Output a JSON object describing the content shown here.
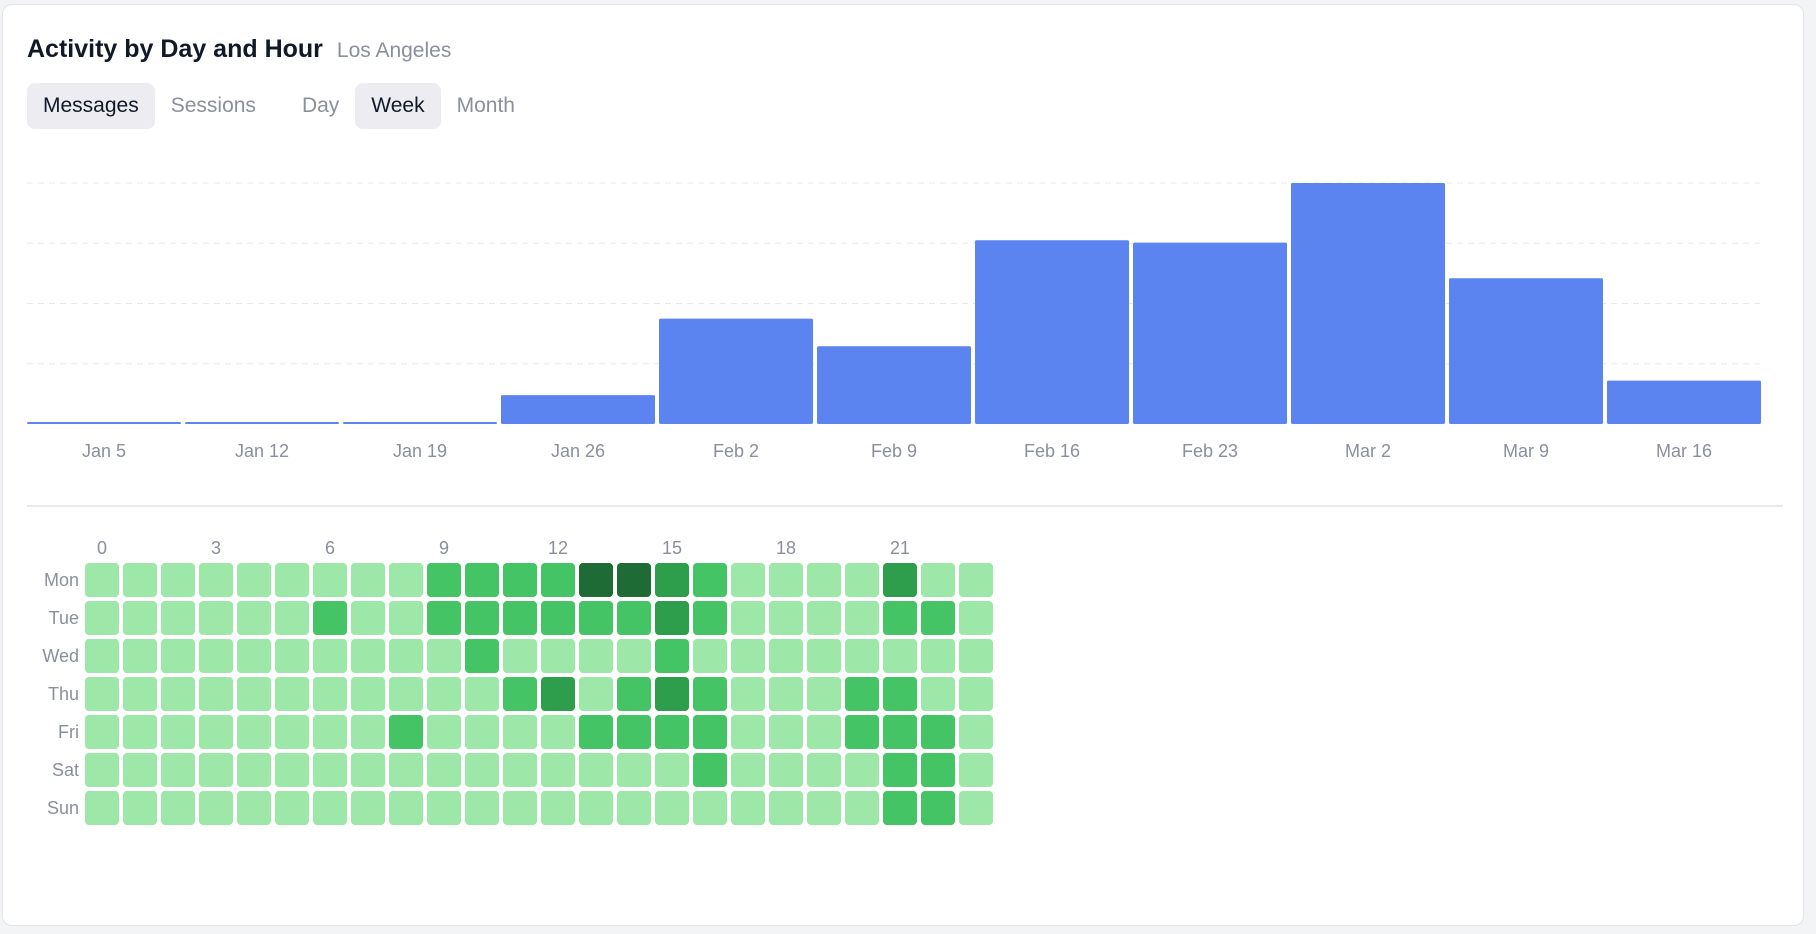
{
  "header": {
    "title": "Activity by Day and Hour",
    "subtitle": "Los Angeles"
  },
  "metric_tabs": [
    {
      "label": "Messages",
      "active": true
    },
    {
      "label": "Sessions",
      "active": false
    }
  ],
  "period_tabs": [
    {
      "label": "Day",
      "active": false
    },
    {
      "label": "Week",
      "active": true
    },
    {
      "label": "Month",
      "active": false
    }
  ],
  "colors": {
    "bar": "#5b84f0",
    "grid": "#e6e8ec",
    "heat_levels": [
      "#9de8a8",
      "#45c465",
      "#2e9e4c",
      "#1e6b35"
    ]
  },
  "chart_data": [
    {
      "type": "bar",
      "categories": [
        "Jan 5",
        "Jan 12",
        "Jan 19",
        "Jan 26",
        "Feb 2",
        "Feb 9",
        "Feb 16",
        "Feb 23",
        "Mar 2",
        "Mar 9",
        "Mar 16"
      ],
      "values": [
        2,
        3,
        1,
        48,
        175,
        129,
        305,
        301,
        400,
        242,
        72
      ],
      "ylim": [
        0,
        400
      ],
      "grid": true,
      "gridlines": 4,
      "title": "",
      "xlabel": "",
      "ylabel": ""
    },
    {
      "type": "heatmap",
      "x_labels": [
        "0",
        "3",
        "6",
        "9",
        "12",
        "15",
        "18",
        "21"
      ],
      "x_label_every": 3,
      "hours": 24,
      "y_labels": [
        "Mon",
        "Tue",
        "Wed",
        "Thu",
        "Fri",
        "Sat",
        "Sun"
      ],
      "levels": [
        [
          0,
          0,
          0,
          0,
          0,
          0,
          0,
          0,
          0,
          1,
          1,
          1,
          1,
          3,
          3,
          2,
          1,
          0,
          0,
          0,
          0,
          2,
          0,
          0
        ],
        [
          0,
          0,
          0,
          0,
          0,
          0,
          1,
          0,
          0,
          1,
          1,
          1,
          1,
          1,
          1,
          2,
          1,
          0,
          0,
          0,
          0,
          1,
          1,
          0
        ],
        [
          0,
          0,
          0,
          0,
          0,
          0,
          0,
          0,
          0,
          0,
          1,
          0,
          0,
          0,
          0,
          1,
          0,
          0,
          0,
          0,
          0,
          0,
          0,
          0
        ],
        [
          0,
          0,
          0,
          0,
          0,
          0,
          0,
          0,
          0,
          0,
          0,
          1,
          2,
          0,
          1,
          2,
          1,
          0,
          0,
          0,
          1,
          1,
          0,
          0
        ],
        [
          0,
          0,
          0,
          0,
          0,
          0,
          0,
          0,
          1,
          0,
          0,
          0,
          0,
          1,
          1,
          1,
          1,
          0,
          0,
          0,
          1,
          1,
          1,
          0
        ],
        [
          0,
          0,
          0,
          0,
          0,
          0,
          0,
          0,
          0,
          0,
          0,
          0,
          0,
          0,
          0,
          0,
          1,
          0,
          0,
          0,
          0,
          1,
          1,
          0
        ],
        [
          0,
          0,
          0,
          0,
          0,
          0,
          0,
          0,
          0,
          0,
          0,
          0,
          0,
          0,
          0,
          0,
          0,
          0,
          0,
          0,
          0,
          1,
          1,
          0
        ]
      ]
    }
  ]
}
